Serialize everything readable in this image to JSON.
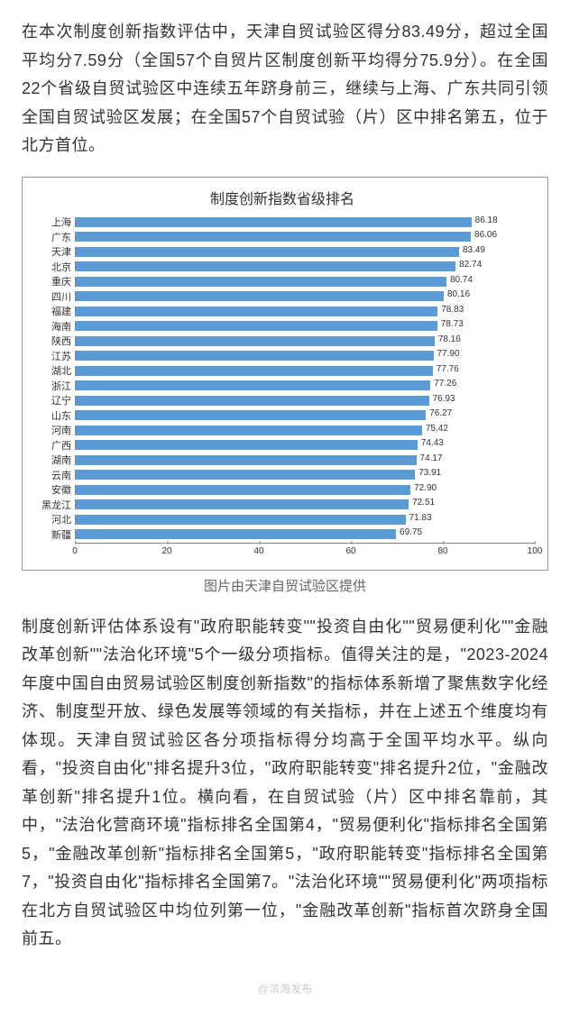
{
  "paragraph1": "在本次制度创新指数评估中，天津自贸试验区得分83.49分，超过全国平均分7.59分（全国57个自贸片区制度创新平均得分75.9分）。在全国22个省级自贸试验区中连续五年跻身前三，继续与上海、广东共同引领全国自贸试验区发展；在全国57个自贸试验（片）区中排名第五，位于北方首位。",
  "chart": {
    "type": "horizontal-bar",
    "title": "制度创新指数省级排名",
    "caption": "图片由天津自贸试验区提供",
    "bar_color": "#5b9bd5",
    "background_color": "#ffffff",
    "xlim": [
      0,
      100
    ],
    "xtick_step": 20,
    "xticks": [
      0,
      20,
      40,
      60,
      80,
      100
    ],
    "label_fontsize": 11,
    "value_fontsize": 10,
    "title_fontsize": 16,
    "categories": [
      "上海",
      "广东",
      "天津",
      "北京",
      "重庆",
      "四川",
      "福建",
      "海南",
      "陕西",
      "江苏",
      "湖北",
      "浙江",
      "辽宁",
      "山东",
      "河南",
      "广西",
      "湖南",
      "云南",
      "安徽",
      "黑龙江",
      "河北",
      "新疆"
    ],
    "values": [
      86.18,
      86.06,
      83.49,
      82.74,
      80.74,
      80.16,
      78.83,
      78.73,
      78.16,
      77.9,
      77.76,
      77.26,
      76.93,
      76.27,
      75.42,
      74.43,
      74.17,
      73.91,
      72.9,
      72.51,
      71.83,
      69.75
    ]
  },
  "paragraph2": "制度创新评估体系设有\"政府职能转变\"\"投资自由化\"\"贸易便利化\"\"金融改革创新\"\"法治化环境\"5个一级分项指标。值得关注的是，\"2023-2024年度中国自由贸易试验区制度创新指数\"的指标体系新增了聚焦数字化经济、制度型开放、绿色发展等领域的有关指标，并在上述五个维度均有体现。天津自贸试验区各分项指标得分均高于全国平均水平。纵向看，\"投资自由化\"排名提升3位，\"政府职能转变\"排名提升2位，\"金融改革创新\"排名提升1位。横向看，在自贸试验（片）区中排名靠前，其中，\"法治化营商环境\"指标排名全国第4，\"贸易便利化\"指标排名全国第5，\"金融改革创新\"指标排名全国第5，\"政府职能转变\"指标排名全国第7，\"投资自由化\"指标排名全国第7。\"法治化环境\"\"贸易便利化\"两项指标在北方自贸试验区中均位列第一位，\"金融改革创新\"指标首次跻身全国前五。",
  "watermark": "@滨海发布"
}
